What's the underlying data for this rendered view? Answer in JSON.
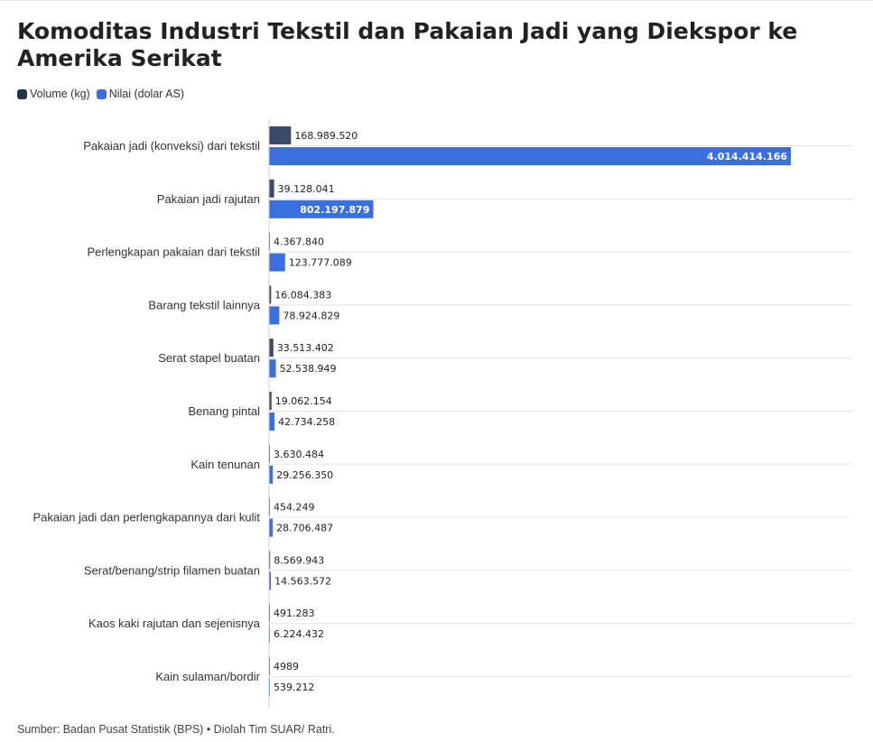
{
  "title": "Komoditas Industri Tekstil dan Pakaian Jadi yang Diekspor ke Amerika Serikat",
  "legend": [
    {
      "label": "Volume (kg)",
      "color": "#253252"
    },
    {
      "label": "Nilai (dolar AS)",
      "color": "#3a6fe0"
    }
  ],
  "footer": "Sumber: Badan Pusat Statistik (BPS) • Diolah Tim SUAR/ Ratri.",
  "chart_data": {
    "type": "bar",
    "orientation": "horizontal",
    "title": "Komoditas Industri Tekstil dan Pakaian Jadi yang Diekspor ke Amerika Serikat",
    "legend_position": "top-left",
    "grid": false,
    "categories": [
      "Pakaian jadi (konveksi) dari tekstil",
      "Pakaian jadi rajutan",
      "Perlengkapan pakaian dari tekstil",
      "Barang tekstil lainnya",
      "Serat stapel buatan",
      "Benang pintal",
      "Kain tenunan",
      "Pakaian jadi dan perlengkapannya dari kulit",
      "Serat/benang/strip filamen buatan",
      "Kaos kaki rajutan dan sejenisnya",
      "Kain sulaman/bordir"
    ],
    "series": [
      {
        "name": "Volume (kg)",
        "color": "#3c4a6b",
        "values": [
          168989520,
          39128041,
          4367840,
          16084383,
          33513402,
          19062154,
          3630484,
          454249,
          8569943,
          491283,
          4989
        ],
        "labels": [
          "168.989.520",
          "39.128.041",
          "4.367.840",
          "16.084.383",
          "33.513.402",
          "19.062.154",
          "3.630.484",
          "454.249",
          "8.569.943",
          "491.283",
          "4989"
        ]
      },
      {
        "name": "Nilai (dolar AS)",
        "color": "#3a6fe0",
        "values": [
          4014414166,
          802197879,
          123777089,
          78924829,
          52538949,
          42734258,
          29256350,
          28706487,
          14563572,
          6224432,
          539212
        ],
        "labels": [
          "4.014.414.166",
          "802.197.879",
          "123.777.089",
          "78.924.829",
          "52.538.949",
          "42.734.258",
          "29.256.350",
          "28.706.487",
          "14.563.572",
          "6.224.432",
          "539.212"
        ]
      }
    ],
    "xlim": [
      0,
      4014414166
    ]
  }
}
